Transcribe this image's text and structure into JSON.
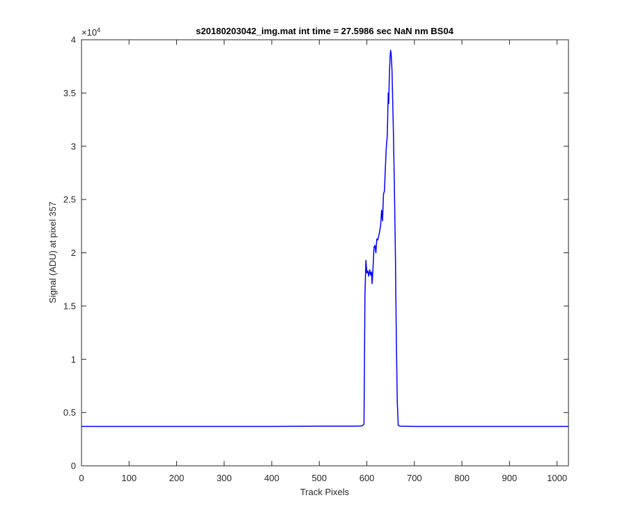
{
  "chart_data": {
    "type": "line",
    "title": "s20180203042_img.mat int time = 27.5986 sec  NaN nm BS04",
    "xlabel": "Track Pixels",
    "ylabel": "Signal (ADU) at pixel 357",
    "exponent_label": "×10",
    "exponent_power": "4",
    "xlim": [
      0,
      1024
    ],
    "ylim": [
      0,
      40000
    ],
    "xticks": [
      0,
      100,
      200,
      300,
      400,
      500,
      600,
      700,
      800,
      900,
      1000
    ],
    "xtick_labels": [
      "0",
      "100",
      "200",
      "300",
      "400",
      "500",
      "600",
      "700",
      "800",
      "900",
      "1000"
    ],
    "yticks": [
      0,
      5000,
      10000,
      15000,
      20000,
      25000,
      30000,
      35000,
      40000
    ],
    "ytick_labels": [
      "0",
      "0.5",
      "1",
      "1.5",
      "2",
      "2.5",
      "3",
      "3.5",
      "4"
    ],
    "grid": false,
    "line_color": "#0000ff",
    "series": [
      {
        "x": [
          0,
          100,
          200,
          300,
          400,
          500,
          580,
          590,
          594,
          596,
          598,
          600,
          602,
          604,
          606,
          608,
          610,
          611,
          613,
          615,
          617,
          619,
          621,
          623,
          625,
          627,
          629,
          631,
          633,
          635,
          637,
          639,
          641,
          643,
          645,
          646,
          647,
          648,
          649,
          650,
          651,
          652,
          653,
          654,
          656,
          658,
          660,
          662,
          664,
          666,
          670,
          700,
          800,
          900,
          1024
        ],
        "y": [
          3700,
          3700,
          3700,
          3700,
          3700,
          3720,
          3720,
          3750,
          3900,
          16000,
          19300,
          18100,
          18300,
          17800,
          18400,
          17900,
          18200,
          17100,
          18500,
          20500,
          20700,
          20000,
          21300,
          21200,
          21600,
          22000,
          22600,
          24000,
          23000,
          25500,
          25800,
          28000,
          30000,
          31000,
          35000,
          34000,
          36000,
          37500,
          38500,
          39000,
          38700,
          38000,
          37000,
          35000,
          31000,
          26000,
          20000,
          12000,
          6000,
          3800,
          3720,
          3700,
          3700,
          3700,
          3700
        ]
      }
    ]
  }
}
